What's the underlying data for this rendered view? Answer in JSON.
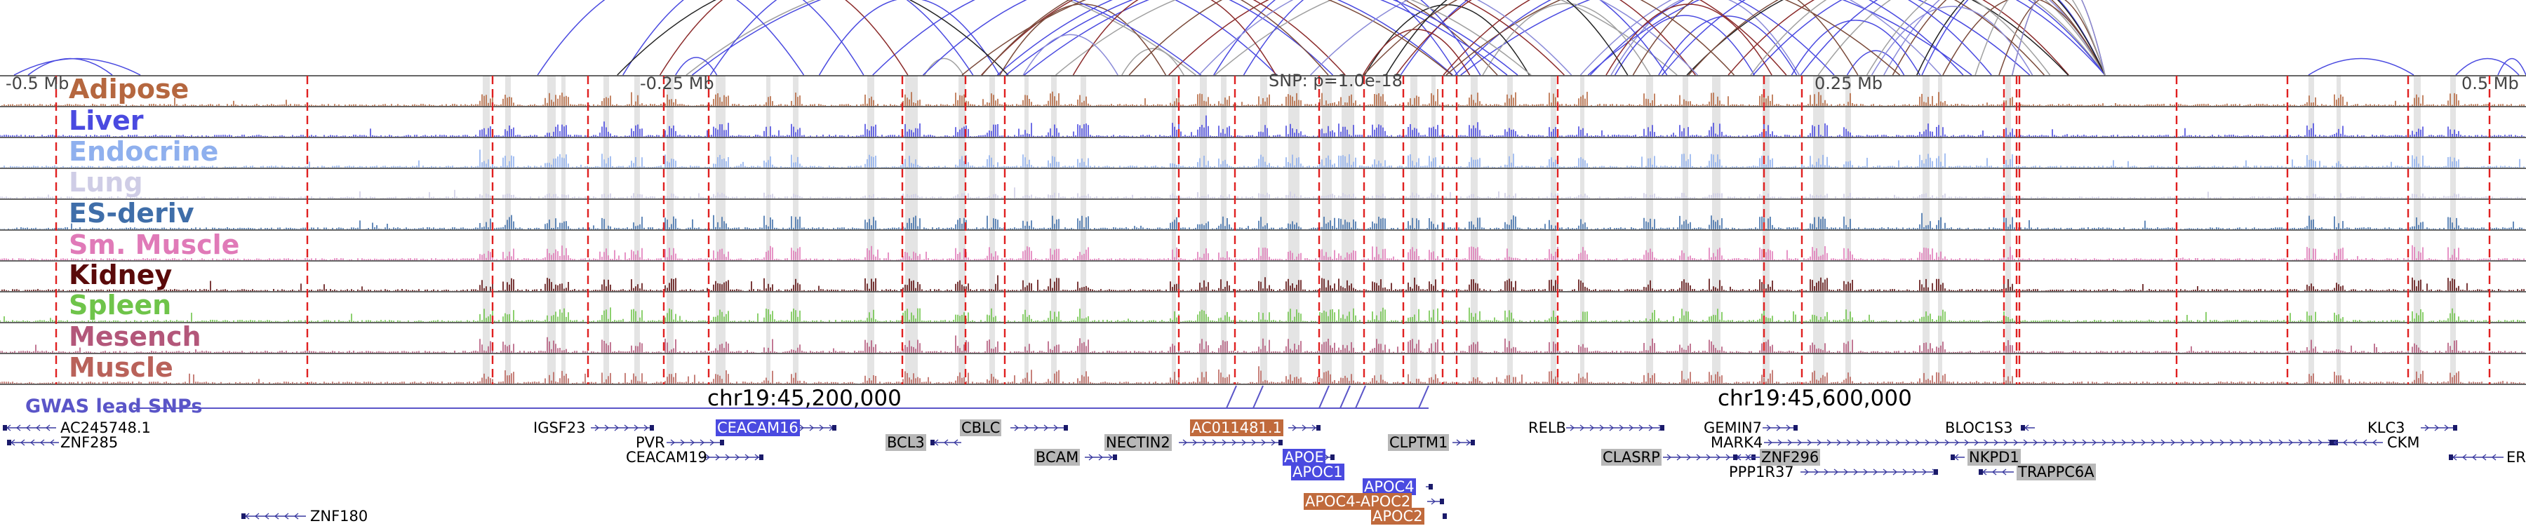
{
  "axis": {
    "left": "-0.5 Mb",
    "left_inner": "-0.25 Mb",
    "right_inner": "0.25 Mb",
    "right": "0.5 Mb"
  },
  "snp": {
    "label": "SNP: p=1.0e-18"
  },
  "chromosome": {
    "pos1": "chr19:45,200,000",
    "pos2": "chr19:45,600,000"
  },
  "gwas": {
    "label": "GWAS lead SNPs"
  },
  "tracks": [
    {
      "name": "Adipose",
      "color": "#b5673f"
    },
    {
      "name": "Liver",
      "color": "#4a4ae0"
    },
    {
      "name": "Endocrine",
      "color": "#8fb0ee"
    },
    {
      "name": "Lung",
      "color": "#cfcde6"
    },
    {
      "name": "ES-deriv",
      "color": "#3f6ea9"
    },
    {
      "name": "Sm. Muscle",
      "color": "#e07ab8"
    },
    {
      "name": "Kidney",
      "color": "#5a0a0a"
    },
    {
      "name": "Spleen",
      "color": "#6fc44a"
    },
    {
      "name": "Mesench",
      "color": "#b3577a"
    },
    {
      "name": "Muscle",
      "color": "#b9625a"
    }
  ],
  "genes": [
    {
      "label": "AC245748.1"
    },
    {
      "label": "ZNF285"
    },
    {
      "label": "ZNF180"
    },
    {
      "label": "IGSF23"
    },
    {
      "label": "PVR"
    },
    {
      "label": "CEACAM19"
    },
    {
      "label": "CEACAM16"
    },
    {
      "label": "BCL3"
    },
    {
      "label": "CBLC"
    },
    {
      "label": "BCAM"
    },
    {
      "label": "NECTIN2"
    },
    {
      "label": "AC011481.1"
    },
    {
      "label": "APOE"
    },
    {
      "label": "APOC1"
    },
    {
      "label": "APOC4"
    },
    {
      "label": "APOC4-APOC2"
    },
    {
      "label": "APOC2"
    },
    {
      "label": "CLPTM1"
    },
    {
      "label": "RELB"
    },
    {
      "label": "CLASRP"
    },
    {
      "label": "GEMIN7"
    },
    {
      "label": "MARK4"
    },
    {
      "label": "ZNF296"
    },
    {
      "label": "PPP1R37"
    },
    {
      "label": "BLOC1S3"
    },
    {
      "label": "NKPD1"
    },
    {
      "label": "TRAPPC6A"
    },
    {
      "label": "KLC3"
    },
    {
      "label": "CKM"
    },
    {
      "label": "ER"
    }
  ]
}
